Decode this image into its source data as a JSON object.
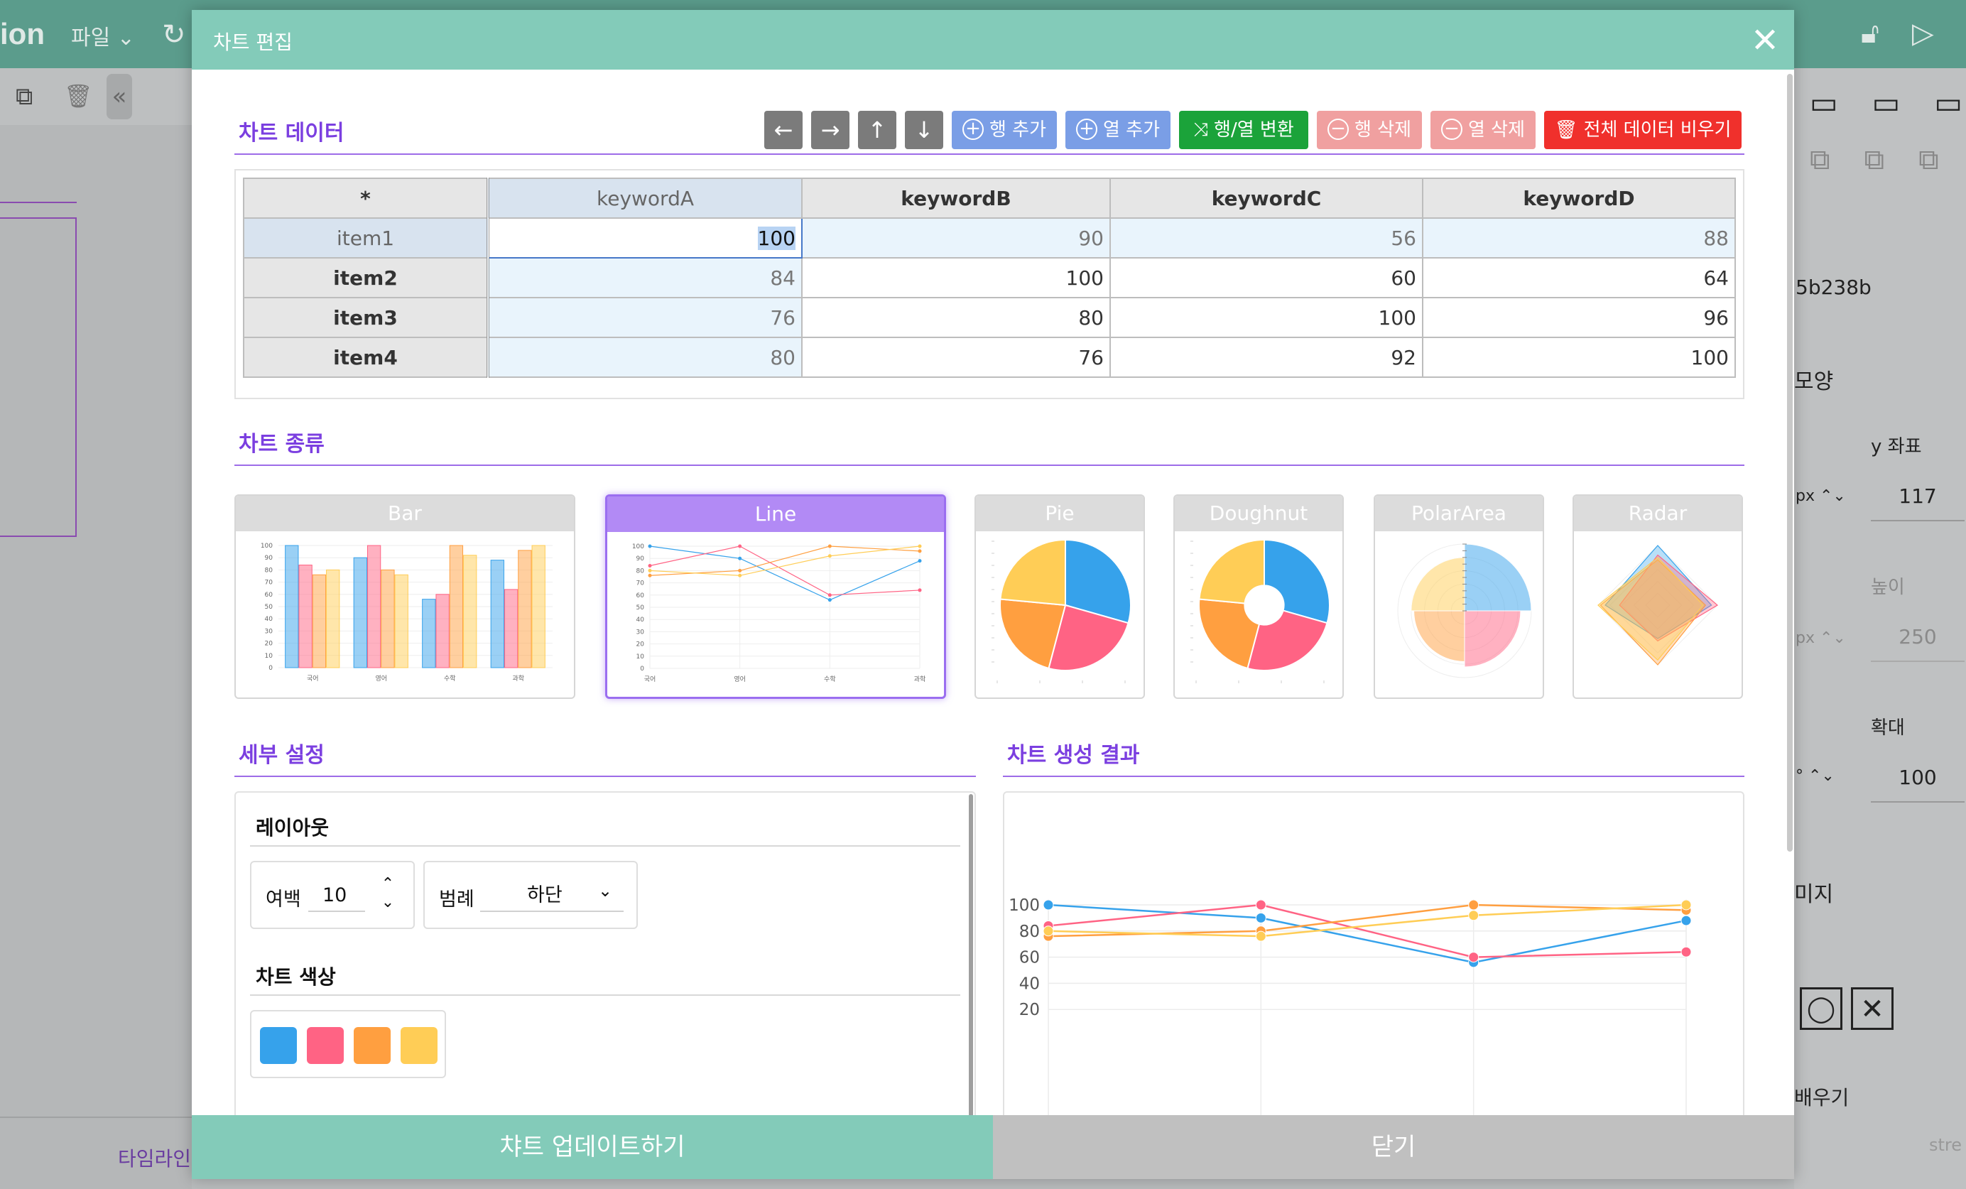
{
  "background": {
    "logo_text": "ion",
    "file_menu": "파일",
    "timeline_label": "타임라인",
    "right_panel": {
      "hash": "5b238b",
      "shape_label": "모양",
      "y_label": "y 좌표",
      "px_unit": "px",
      "y_value": "117",
      "height_label": "높이",
      "height_value": "250",
      "zoom_label": "확대",
      "zoom_unit": "°",
      "zoom_value": "100",
      "image_label": "미지",
      "fill_label": "배우기",
      "stroke_text": "stre"
    }
  },
  "modal": {
    "title": "차트 편집",
    "sections": {
      "data": "차트 데이터",
      "type": "차트 종류",
      "settings": "세부 설정",
      "result": "차트 생성 결과"
    },
    "toolbar": {
      "add_row": "행 추가",
      "add_col": "열 추가",
      "transpose": "행/열 변환",
      "del_row": "행 삭제",
      "del_col": "열 삭제",
      "clear_all": "전체 데이터 비우기"
    },
    "table": {
      "corner": "*",
      "columns": [
        "keywordA",
        "keywordB",
        "keywordC",
        "keywordD"
      ],
      "rows": [
        {
          "label": "item1",
          "values": [
            "100",
            "90",
            "56",
            "88"
          ]
        },
        {
          "label": "item2",
          "values": [
            "84",
            "100",
            "60",
            "64"
          ]
        },
        {
          "label": "item3",
          "values": [
            "76",
            "80",
            "100",
            "96"
          ]
        },
        {
          "label": "item4",
          "values": [
            "80",
            "76",
            "92",
            "100"
          ]
        }
      ]
    },
    "chart_types": [
      "Bar",
      "Line",
      "Pie",
      "Doughnut",
      "PolarArea",
      "Radar"
    ],
    "selected_chart_type": "Line",
    "settings": {
      "layout_title": "레이아웃",
      "margin_label": "여백",
      "margin_value": "10",
      "legend_label": "범례",
      "legend_value": "하단",
      "color_title": "차트 색상",
      "colors": [
        "#36a2eb",
        "#ff6384",
        "#ff9f40",
        "#ffcd56"
      ]
    },
    "thumbnail_labels": [
      "국어",
      "영어",
      "수학",
      "과학"
    ],
    "footer": {
      "update": "챠트 업데이트하기",
      "close": "닫기"
    }
  },
  "chart_data": {
    "type": "line",
    "x": [
      "",
      "",
      "",
      ""
    ],
    "series": [
      {
        "values": [
          100,
          90,
          56,
          88
        ],
        "color": "#36a2eb"
      },
      {
        "values": [
          84,
          100,
          60,
          64
        ],
        "color": "#ff6384"
      },
      {
        "values": [
          76,
          80,
          100,
          96
        ],
        "color": "#ff9f40"
      },
      {
        "values": [
          80,
          76,
          92,
          100
        ],
        "color": "#ffcd56"
      }
    ],
    "y_ticks": [
      "100",
      "80",
      "60",
      "40",
      "20"
    ],
    "ylim": [
      0,
      100
    ],
    "grid": true
  }
}
